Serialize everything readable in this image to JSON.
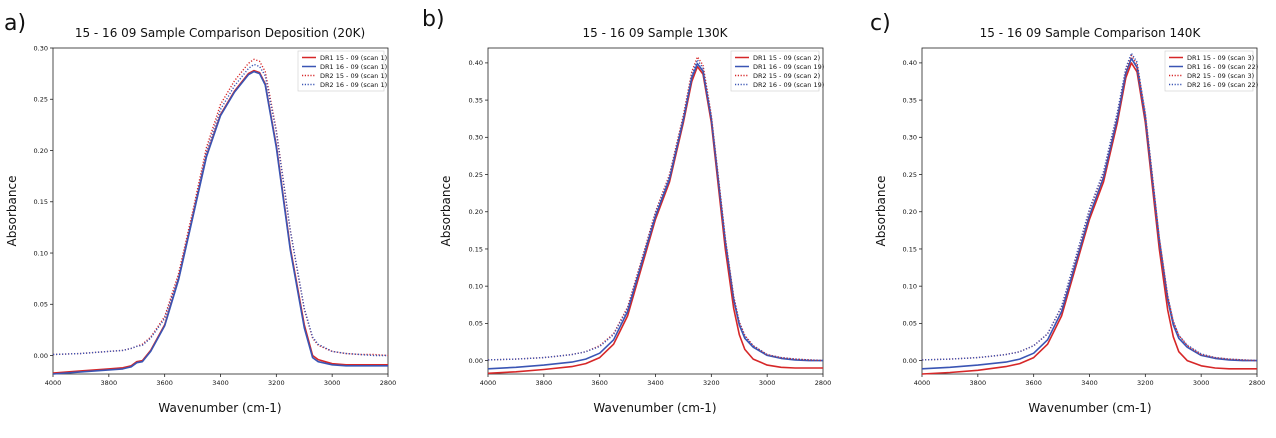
{
  "colors": {
    "red": "#d62728",
    "blue": "#3a55b4",
    "axis": "#222222"
  },
  "chart_data": [
    {
      "panel_label": "a)",
      "type": "line",
      "title": "15 - 16 09 Sample Comparison Deposition (20K)",
      "xlabel": "Wavenumber (cm-1)",
      "ylabel": "Absorbance",
      "xlim": [
        4000,
        2800
      ],
      "ylim": [
        -0.018,
        0.3
      ],
      "xticks": [
        "4000",
        "3800",
        "3600",
        "3400",
        "3200",
        "3000",
        "2800"
      ],
      "xtick_values": [
        4000,
        3800,
        3600,
        3400,
        3200,
        3000,
        2800
      ],
      "yticks": [
        "0.00",
        "0.05",
        "0.10",
        "0.15",
        "0.20",
        "0.25",
        "0.30"
      ],
      "ytick_values": [
        0.0,
        0.05,
        0.1,
        0.15,
        0.2,
        0.25,
        0.3
      ],
      "legend_position": "top-right",
      "grid": false,
      "series": [
        {
          "name": "DR1 15 - 09 (scan 1)",
          "color": "#d62728",
          "style": "solid",
          "x": [
            4000,
            3900,
            3800,
            3750,
            3720,
            3700,
            3680,
            3650,
            3600,
            3550,
            3500,
            3450,
            3400,
            3350,
            3300,
            3280,
            3260,
            3240,
            3200,
            3150,
            3100,
            3070,
            3050,
            3000,
            2950,
            2900,
            2850,
            2800
          ],
          "y": [
            -0.017,
            -0.015,
            -0.013,
            -0.012,
            -0.01,
            -0.006,
            -0.005,
            0.005,
            0.03,
            0.075,
            0.135,
            0.195,
            0.235,
            0.258,
            0.275,
            0.278,
            0.276,
            0.265,
            0.205,
            0.105,
            0.03,
            0.0,
            -0.004,
            -0.008,
            -0.009,
            -0.009,
            -0.009,
            -0.009
          ]
        },
        {
          "name": "DR1 16 - 09 (scan 1)",
          "color": "#3a55b4",
          "style": "solid",
          "x": [
            4000,
            3900,
            3800,
            3750,
            3720,
            3700,
            3680,
            3650,
            3600,
            3550,
            3500,
            3450,
            3400,
            3350,
            3300,
            3280,
            3260,
            3240,
            3200,
            3150,
            3100,
            3070,
            3050,
            3000,
            2950,
            2900,
            2850,
            2800
          ],
          "y": [
            -0.018,
            -0.016,
            -0.014,
            -0.013,
            -0.011,
            -0.007,
            -0.006,
            0.004,
            0.029,
            0.074,
            0.134,
            0.194,
            0.234,
            0.257,
            0.274,
            0.277,
            0.275,
            0.264,
            0.203,
            0.103,
            0.027,
            -0.002,
            -0.006,
            -0.009,
            -0.01,
            -0.01,
            -0.01,
            -0.01
          ]
        },
        {
          "name": "DR2 15 - 09 (scan 1)",
          "color": "#d62728",
          "style": "dotted",
          "x": [
            4000,
            3900,
            3800,
            3750,
            3720,
            3700,
            3680,
            3650,
            3600,
            3550,
            3500,
            3450,
            3400,
            3350,
            3300,
            3280,
            3260,
            3240,
            3200,
            3150,
            3100,
            3070,
            3050,
            3000,
            2950,
            2900,
            2850,
            2800
          ],
          "y": [
            0.001,
            0.002,
            0.004,
            0.005,
            0.007,
            0.009,
            0.011,
            0.018,
            0.038,
            0.08,
            0.14,
            0.203,
            0.245,
            0.268,
            0.285,
            0.289,
            0.287,
            0.277,
            0.22,
            0.122,
            0.045,
            0.017,
            0.01,
            0.004,
            0.002,
            0.001,
            0.001,
            0.0
          ]
        },
        {
          "name": "DR2 16 - 09 (scan 1)",
          "color": "#3a55b4",
          "style": "dotted",
          "x": [
            4000,
            3900,
            3800,
            3750,
            3720,
            3700,
            3680,
            3650,
            3600,
            3550,
            3500,
            3450,
            3400,
            3350,
            3300,
            3280,
            3260,
            3240,
            3200,
            3150,
            3100,
            3070,
            3050,
            3000,
            2950,
            2900,
            2850,
            2800
          ],
          "y": [
            0.001,
            0.002,
            0.004,
            0.005,
            0.007,
            0.009,
            0.01,
            0.017,
            0.036,
            0.077,
            0.137,
            0.199,
            0.24,
            0.263,
            0.28,
            0.284,
            0.282,
            0.273,
            0.218,
            0.122,
            0.046,
            0.018,
            0.011,
            0.004,
            0.002,
            0.001,
            0.0,
            0.0
          ]
        }
      ]
    },
    {
      "panel_label": "b)",
      "type": "line",
      "title": "15 - 16 09 Sample 130K",
      "xlabel": "Wavenumber (cm-1)",
      "ylabel": "Absorbance",
      "xlim": [
        4000,
        2800
      ],
      "ylim": [
        -0.018,
        0.42
      ],
      "xticks": [
        "4000",
        "3800",
        "3600",
        "3400",
        "3200",
        "3000",
        "2800"
      ],
      "xtick_values": [
        4000,
        3800,
        3600,
        3400,
        3200,
        3000,
        2800
      ],
      "yticks": [
        "0.00",
        "0.05",
        "0.10",
        "0.15",
        "0.20",
        "0.25",
        "0.30",
        "0.35",
        "0.40"
      ],
      "ytick_values": [
        0.0,
        0.05,
        0.1,
        0.15,
        0.2,
        0.25,
        0.3,
        0.35,
        0.4
      ],
      "legend_position": "top-right",
      "grid": false,
      "series": [
        {
          "name": "DR1 15 - 09 (scan 2)",
          "color": "#d62728",
          "style": "solid",
          "x": [
            4000,
            3900,
            3800,
            3700,
            3650,
            3600,
            3550,
            3500,
            3450,
            3400,
            3350,
            3300,
            3270,
            3250,
            3230,
            3200,
            3150,
            3120,
            3100,
            3080,
            3050,
            3000,
            2950,
            2900,
            2850,
            2800
          ],
          "y": [
            -0.017,
            -0.015,
            -0.012,
            -0.008,
            -0.004,
            0.004,
            0.022,
            0.06,
            0.125,
            0.19,
            0.24,
            0.32,
            0.375,
            0.395,
            0.385,
            0.32,
            0.15,
            0.07,
            0.035,
            0.015,
            0.002,
            -0.006,
            -0.009,
            -0.01,
            -0.01,
            -0.01
          ]
        },
        {
          "name": "DR1 16 - 09 (scan 19)",
          "color": "#3a55b4",
          "style": "solid",
          "x": [
            4000,
            3900,
            3800,
            3700,
            3650,
            3600,
            3550,
            3500,
            3450,
            3400,
            3350,
            3300,
            3270,
            3250,
            3230,
            3200,
            3150,
            3120,
            3100,
            3080,
            3050,
            3000,
            2950,
            2900,
            2850,
            2800
          ],
          "y": [
            -0.011,
            -0.009,
            -0.006,
            -0.002,
            0.002,
            0.01,
            0.028,
            0.066,
            0.13,
            0.194,
            0.244,
            0.324,
            0.38,
            0.399,
            0.389,
            0.325,
            0.16,
            0.082,
            0.048,
            0.03,
            0.018,
            0.007,
            0.003,
            0.001,
            0.0,
            0.0
          ]
        },
        {
          "name": "DR2 15 - 09 (scan 2)",
          "color": "#d62728",
          "style": "dotted",
          "x": [
            4000,
            3900,
            3800,
            3700,
            3650,
            3600,
            3550,
            3500,
            3450,
            3400,
            3350,
            3300,
            3270,
            3250,
            3230,
            3200,
            3150,
            3120,
            3100,
            3080,
            3050,
            3000,
            2950,
            2900,
            2850,
            2800
          ],
          "y": [
            0.001,
            0.002,
            0.004,
            0.008,
            0.012,
            0.02,
            0.036,
            0.072,
            0.135,
            0.2,
            0.25,
            0.33,
            0.388,
            0.408,
            0.397,
            0.33,
            0.165,
            0.086,
            0.052,
            0.034,
            0.02,
            0.008,
            0.004,
            0.002,
            0.001,
            0.0
          ]
        },
        {
          "name": "DR2 16 - 09 (scan 19)",
          "color": "#3a55b4",
          "style": "dotted",
          "x": [
            4000,
            3900,
            3800,
            3700,
            3650,
            3600,
            3550,
            3500,
            3450,
            3400,
            3350,
            3300,
            3270,
            3250,
            3230,
            3200,
            3150,
            3120,
            3100,
            3080,
            3050,
            3000,
            2950,
            2900,
            2850,
            2800
          ],
          "y": [
            0.001,
            0.002,
            0.004,
            0.008,
            0.012,
            0.019,
            0.035,
            0.07,
            0.133,
            0.198,
            0.248,
            0.327,
            0.384,
            0.404,
            0.393,
            0.327,
            0.163,
            0.085,
            0.051,
            0.033,
            0.02,
            0.008,
            0.004,
            0.002,
            0.001,
            0.0
          ]
        }
      ]
    },
    {
      "panel_label": "c)",
      "type": "line",
      "title": "15 - 16 09 Sample Comparison 140K",
      "xlabel": "Wavenumber (cm-1)",
      "ylabel": "Absorbance",
      "xlim": [
        4000,
        2800
      ],
      "ylim": [
        -0.018,
        0.42
      ],
      "xticks": [
        "4000",
        "3800",
        "3600",
        "3400",
        "3200",
        "3000",
        "2800"
      ],
      "xtick_values": [
        4000,
        3800,
        3600,
        3400,
        3200,
        3000,
        2800
      ],
      "yticks": [
        "0.00",
        "0.05",
        "0.10",
        "0.15",
        "0.20",
        "0.25",
        "0.30",
        "0.35",
        "0.40"
      ],
      "ytick_values": [
        0.0,
        0.05,
        0.1,
        0.15,
        0.2,
        0.25,
        0.3,
        0.35,
        0.4
      ],
      "legend_position": "top-right",
      "grid": false,
      "series": [
        {
          "name": "DR1 15 - 09 (scan 3)",
          "color": "#d62728",
          "style": "solid",
          "x": [
            4000,
            3900,
            3800,
            3700,
            3650,
            3600,
            3550,
            3500,
            3450,
            3400,
            3350,
            3300,
            3270,
            3250,
            3230,
            3200,
            3150,
            3120,
            3100,
            3080,
            3050,
            3000,
            2950,
            2900,
            2850,
            2800
          ],
          "y": [
            -0.018,
            -0.016,
            -0.013,
            -0.008,
            -0.004,
            0.004,
            0.022,
            0.06,
            0.125,
            0.19,
            0.24,
            0.32,
            0.38,
            0.4,
            0.388,
            0.32,
            0.15,
            0.068,
            0.032,
            0.012,
            0.0,
            -0.007,
            -0.01,
            -0.011,
            -0.011,
            -0.011
          ]
        },
        {
          "name": "DR1 16 - 09 (scan 22)",
          "color": "#3a55b4",
          "style": "solid",
          "x": [
            4000,
            3900,
            3800,
            3700,
            3650,
            3600,
            3550,
            3500,
            3450,
            3400,
            3350,
            3300,
            3270,
            3250,
            3230,
            3200,
            3150,
            3120,
            3100,
            3080,
            3050,
            3000,
            2950,
            2900,
            2850,
            2800
          ],
          "y": [
            -0.011,
            -0.009,
            -0.006,
            -0.002,
            0.002,
            0.01,
            0.028,
            0.066,
            0.13,
            0.195,
            0.246,
            0.326,
            0.386,
            0.406,
            0.394,
            0.326,
            0.16,
            0.082,
            0.048,
            0.03,
            0.018,
            0.007,
            0.003,
            0.001,
            0.0,
            0.0
          ]
        },
        {
          "name": "DR2 15 - 09 (scan 3)",
          "color": "#d62728",
          "style": "dotted",
          "x": [
            4000,
            3900,
            3800,
            3700,
            3650,
            3600,
            3550,
            3500,
            3450,
            3400,
            3350,
            3300,
            3270,
            3250,
            3230,
            3200,
            3150,
            3120,
            3100,
            3080,
            3050,
            3000,
            2950,
            2900,
            2850,
            2800
          ],
          "y": [
            0.001,
            0.002,
            0.004,
            0.008,
            0.012,
            0.02,
            0.036,
            0.072,
            0.136,
            0.202,
            0.252,
            0.332,
            0.39,
            0.41,
            0.398,
            0.33,
            0.164,
            0.086,
            0.052,
            0.034,
            0.02,
            0.008,
            0.004,
            0.002,
            0.001,
            0.0
          ]
        },
        {
          "name": "DR2 16 - 09 (scan 22)",
          "color": "#3a55b4",
          "style": "dotted",
          "x": [
            4000,
            3900,
            3800,
            3700,
            3650,
            3600,
            3550,
            3500,
            3450,
            3400,
            3350,
            3300,
            3270,
            3250,
            3230,
            3200,
            3150,
            3120,
            3100,
            3080,
            3050,
            3000,
            2950,
            2900,
            2850,
            2800
          ],
          "y": [
            0.001,
            0.002,
            0.004,
            0.008,
            0.012,
            0.02,
            0.036,
            0.073,
            0.138,
            0.204,
            0.254,
            0.334,
            0.393,
            0.413,
            0.401,
            0.333,
            0.166,
            0.087,
            0.053,
            0.034,
            0.021,
            0.009,
            0.004,
            0.002,
            0.001,
            0.0
          ]
        }
      ]
    }
  ]
}
